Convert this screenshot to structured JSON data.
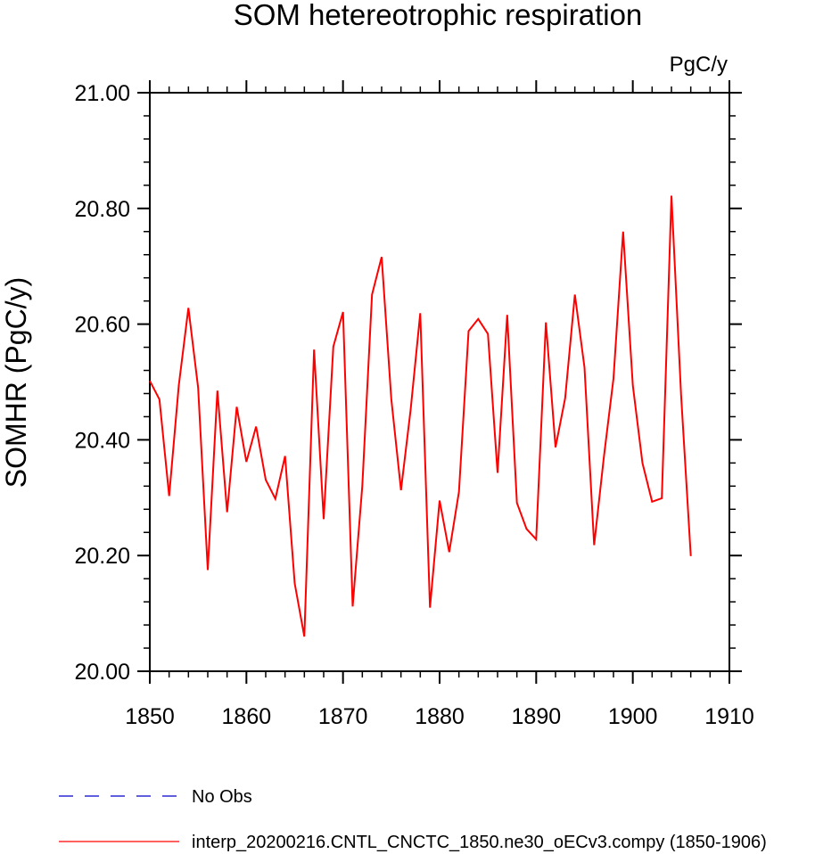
{
  "chart_data": {
    "type": "line",
    "title": "SOM hetereotrophic respiration",
    "units_label": "PgC/y",
    "xlabel": "",
    "ylabel": "SOMHR  (PgC/y)",
    "xlim": [
      1850,
      1910
    ],
    "ylim": [
      20.0,
      21.0
    ],
    "x_ticks": [
      1850,
      1860,
      1870,
      1880,
      1890,
      1900,
      1910
    ],
    "y_ticks": [
      20.0,
      20.2,
      20.4,
      20.6,
      20.8,
      21.0
    ],
    "y_tick_labels": [
      "20.00",
      "20.20",
      "20.40",
      "20.60",
      "20.80",
      "21.00"
    ],
    "grid": false,
    "legend_position": "bottom-left",
    "series": [
      {
        "name": "No Obs",
        "color": "#0000cc",
        "style": "dashed",
        "x": [],
        "values": []
      },
      {
        "name": "interp_20200216.CNTL_CNCTC_1850.ne30_oECv3.compy (1850-1906)",
        "color": "#ff0000",
        "style": "solid",
        "x": [
          1850,
          1851,
          1852,
          1853,
          1854,
          1855,
          1856,
          1857,
          1858,
          1859,
          1860,
          1861,
          1862,
          1863,
          1864,
          1865,
          1866,
          1867,
          1868,
          1869,
          1870,
          1871,
          1872,
          1873,
          1874,
          1875,
          1876,
          1877,
          1878,
          1879,
          1880,
          1881,
          1882,
          1883,
          1884,
          1885,
          1886,
          1887,
          1888,
          1889,
          1890,
          1891,
          1892,
          1893,
          1894,
          1895,
          1896,
          1897,
          1898,
          1899,
          1900,
          1901,
          1902,
          1903,
          1904,
          1905,
          1906
        ],
        "values": [
          20.502,
          20.47,
          20.303,
          20.494,
          20.628,
          20.49,
          20.175,
          20.485,
          20.275,
          20.457,
          20.362,
          20.423,
          20.331,
          20.298,
          20.372,
          20.152,
          20.06,
          20.556,
          20.263,
          20.561,
          20.621,
          20.112,
          20.32,
          20.651,
          20.716,
          20.471,
          20.313,
          20.452,
          20.619,
          20.11,
          20.295,
          20.206,
          20.31,
          20.588,
          20.609,
          20.583,
          20.343,
          20.616,
          20.291,
          20.246,
          20.228,
          20.603,
          20.387,
          20.472,
          20.651,
          20.525,
          20.218,
          20.37,
          20.506,
          20.76,
          20.494,
          20.36,
          20.293,
          20.299,
          20.822,
          20.478,
          20.199
        ]
      }
    ]
  }
}
